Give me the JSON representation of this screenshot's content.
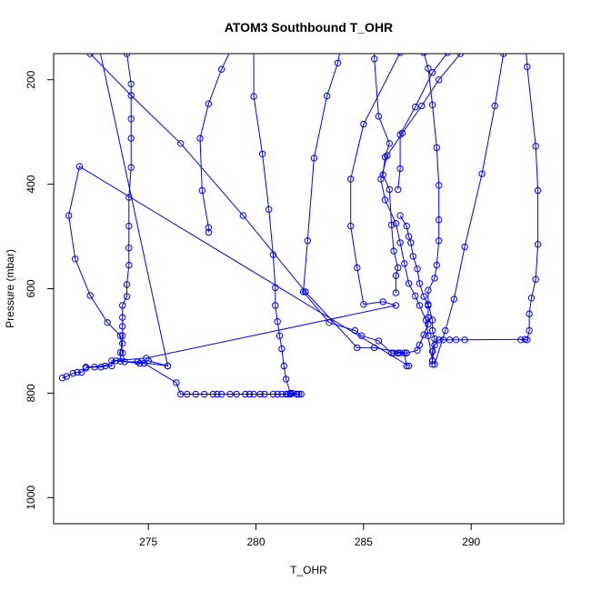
{
  "chart_data": {
    "type": "line",
    "title": "ATOM3 Southbound T_OHR",
    "xlabel": "T_OHR",
    "ylabel": "Pressure (mbar)",
    "xlim": [
      270.6,
      294.3
    ],
    "ylim": [
      1050,
      150
    ],
    "y_reversed": true,
    "x_ticks": [
      275,
      280,
      285,
      290
    ],
    "y_ticks": [
      200,
      400,
      600,
      800,
      1000
    ],
    "grid": false,
    "series_color": "#0000ff",
    "marker": "open-circle",
    "series": [
      {
        "points": [
          [
            272.2,
            40
          ],
          [
            275.9,
            748
          ],
          [
            275.0,
            738
          ],
          [
            274.6,
            743
          ],
          [
            273.7,
            739
          ],
          [
            273.7,
            722
          ],
          [
            273.8,
            705
          ],
          [
            273.8,
            690
          ],
          [
            273.8,
            672
          ],
          [
            273.8,
            655
          ],
          [
            273.8,
            632
          ],
          [
            274.0,
            615
          ],
          [
            274.0,
            592
          ],
          [
            274.1,
            555
          ],
          [
            274.1,
            522
          ],
          [
            274.1,
            480
          ],
          [
            274.1,
            425
          ],
          [
            274.2,
            368
          ],
          [
            274.2,
            312
          ],
          [
            274.2,
            275
          ],
          [
            274.2,
            208
          ],
          [
            274.0,
            150
          ],
          [
            273.9,
            40
          ]
        ]
      },
      {
        "points": [
          [
            282.1,
            802
          ],
          [
            281.9,
            802
          ],
          [
            281.7,
            800
          ],
          [
            281.6,
            800
          ],
          [
            281.4,
            773
          ],
          [
            281.3,
            748
          ],
          [
            281.2,
            715
          ],
          [
            281.1,
            690
          ],
          [
            281.0,
            663
          ],
          [
            280.9,
            632
          ],
          [
            280.9,
            598
          ],
          [
            280.8,
            535
          ],
          [
            280.6,
            448
          ],
          [
            280.3,
            342
          ],
          [
            279.9,
            232
          ],
          [
            279.9,
            100
          ],
          [
            279.9,
            40
          ]
        ]
      },
      {
        "points": [
          [
            282.0,
            802
          ],
          [
            281.9,
            802
          ],
          [
            281.6,
            802
          ],
          [
            281.5,
            802
          ],
          [
            281.4,
            802
          ],
          [
            281.2,
            802
          ],
          [
            281.0,
            802
          ],
          [
            280.8,
            802
          ],
          [
            280.4,
            802
          ],
          [
            280.2,
            802
          ],
          [
            279.9,
            802
          ],
          [
            279.7,
            802
          ],
          [
            279.5,
            802
          ],
          [
            279.1,
            802
          ],
          [
            278.8,
            802
          ],
          [
            278.4,
            802
          ],
          [
            278.2,
            802
          ],
          [
            278.0,
            802
          ],
          [
            277.6,
            802
          ],
          [
            277.2,
            802
          ],
          [
            276.8,
            802
          ],
          [
            276.5,
            802
          ],
          [
            276.3,
            780
          ],
          [
            274.8,
            743
          ],
          [
            273.5,
            738
          ],
          [
            272.8,
            750
          ],
          [
            272.5,
            750
          ],
          [
            272.1,
            752
          ],
          [
            271.9,
            760
          ],
          [
            271.7,
            760
          ],
          [
            271.5,
            762
          ],
          [
            271.2,
            768
          ],
          [
            271.0,
            771
          ]
        ]
      },
      {
        "points": [
          [
            272.1,
            750
          ],
          [
            273.0,
            748
          ],
          [
            273.3,
            748
          ],
          [
            273.3,
            738
          ],
          [
            274.9,
            733
          ],
          [
            286.5,
            632
          ],
          [
            285.9,
            625
          ],
          [
            285.0,
            630
          ],
          [
            284.7,
            560
          ],
          [
            284.4,
            480
          ],
          [
            284.4,
            390
          ],
          [
            285.0,
            285
          ],
          [
            286.7,
            148
          ],
          [
            287.3,
            40
          ]
        ]
      },
      {
        "points": [
          [
            287.0,
            723
          ],
          [
            286.7,
            723
          ],
          [
            286.6,
            723
          ],
          [
            286.4,
            723
          ],
          [
            286.3,
            723
          ],
          [
            285.7,
            700
          ],
          [
            284.9,
            690
          ],
          [
            284.6,
            680
          ],
          [
            283.4,
            665
          ],
          [
            282.2,
            606
          ],
          [
            282.4,
            508
          ],
          [
            282.7,
            350
          ],
          [
            283.3,
            231
          ],
          [
            283.8,
            168
          ],
          [
            284.1,
            100
          ],
          [
            284.4,
            40
          ]
        ]
      },
      {
        "points": [
          [
            287.0,
            748
          ],
          [
            286.9,
            723
          ],
          [
            285.5,
            713
          ],
          [
            284.7,
            713
          ],
          [
            282.3,
            606
          ],
          [
            279.4,
            460
          ],
          [
            276.5,
            322
          ],
          [
            274.2,
            230
          ],
          [
            272.3,
            150
          ],
          [
            271.9,
            40
          ]
        ]
      },
      {
        "points": [
          [
            287.1,
            748
          ],
          [
            271.8,
            366
          ],
          [
            271.3,
            460
          ],
          [
            271.6,
            543
          ],
          [
            272.3,
            613
          ],
          [
            273.1,
            665
          ],
          [
            273.7,
            690
          ],
          [
            273.8,
            723
          ],
          [
            273.9,
            740
          ],
          [
            274.5,
            740
          ],
          [
            275.9,
            748
          ]
        ]
      },
      {
        "points": [
          [
            277.8,
            492
          ],
          [
            277.8,
            483
          ],
          [
            277.5,
            412
          ],
          [
            277.4,
            312
          ],
          [
            277.8,
            246
          ],
          [
            278.4,
            180
          ],
          [
            279.1,
            120
          ],
          [
            279.6,
            40
          ]
        ]
      },
      {
        "points": [
          [
            286.5,
            608
          ],
          [
            286.5,
            575
          ],
          [
            286.6,
            560
          ],
          [
            286.4,
            528
          ],
          [
            286.3,
            478
          ],
          [
            286.2,
            410
          ],
          [
            285.9,
            382
          ],
          [
            286.0,
            348
          ],
          [
            286.2,
            322
          ],
          [
            285.7,
            270
          ],
          [
            285.5,
            160
          ],
          [
            285.6,
            40
          ]
        ]
      },
      {
        "points": [
          [
            286.6,
            410
          ],
          [
            286.7,
            370
          ],
          [
            286.7,
            305
          ],
          [
            287.4,
            252
          ],
          [
            288.2,
            186
          ],
          [
            288.9,
            148
          ],
          [
            290.1,
            40
          ]
        ]
      },
      {
        "points": [
          [
            292.3,
            698
          ],
          [
            292.6,
            698
          ],
          [
            292.7,
            680
          ],
          [
            292.7,
            648
          ],
          [
            292.8,
            618
          ],
          [
            293.0,
            582
          ],
          [
            293.1,
            515
          ],
          [
            293.1,
            412
          ],
          [
            293.0,
            327
          ],
          [
            292.6,
            175
          ],
          [
            292.4,
            40
          ]
        ]
      },
      {
        "points": [
          [
            292.5,
            697
          ],
          [
            289.7,
            698
          ],
          [
            289.3,
            698
          ],
          [
            289.0,
            698
          ],
          [
            288.7,
            698
          ],
          [
            288.5,
            698
          ],
          [
            288.3,
            708
          ],
          [
            288.2,
            738
          ],
          [
            288.2,
            745
          ],
          [
            288.2,
            720
          ],
          [
            288.3,
            696
          ],
          [
            288.2,
            680
          ],
          [
            288.2,
            660
          ],
          [
            288.0,
            630
          ],
          [
            288.0,
            603
          ],
          [
            288.3,
            580
          ],
          [
            288.4,
            555
          ],
          [
            288.5,
            508
          ],
          [
            288.5,
            468
          ],
          [
            288.5,
            402
          ],
          [
            288.4,
            330
          ],
          [
            288.2,
            248
          ],
          [
            288.0,
            178
          ],
          [
            287.8,
            148
          ],
          [
            287.6,
            40
          ]
        ]
      },
      {
        "points": [
          [
            288.2,
            738
          ],
          [
            288.0,
            690
          ],
          [
            287.9,
            660
          ],
          [
            287.6,
            632
          ],
          [
            287.4,
            614
          ],
          [
            287.1,
            590
          ],
          [
            286.9,
            552
          ],
          [
            286.7,
            512
          ],
          [
            286.5,
            475
          ],
          [
            286.0,
            430
          ],
          [
            285.8,
            390
          ],
          [
            286.1,
            345
          ],
          [
            286.8,
            302
          ],
          [
            287.7,
            250
          ],
          [
            288.5,
            200
          ],
          [
            289.5,
            150
          ],
          [
            290.2,
            40
          ]
        ]
      },
      {
        "points": [
          [
            288.3,
            745
          ],
          [
            288.8,
            680
          ],
          [
            289.2,
            620
          ],
          [
            289.7,
            520
          ],
          [
            290.5,
            380
          ],
          [
            291.1,
            250
          ],
          [
            291.5,
            150
          ],
          [
            291.6,
            40
          ]
        ]
      },
      {
        "points": [
          [
            286.6,
            723
          ],
          [
            287.0,
            723
          ],
          [
            287.5,
            718
          ],
          [
            287.6,
            708
          ],
          [
            287.8,
            688
          ],
          [
            288.0,
            668
          ],
          [
            288.0,
            655
          ],
          [
            288.0,
            632
          ],
          [
            287.8,
            615
          ],
          [
            287.6,
            590
          ],
          [
            287.5,
            562
          ],
          [
            287.3,
            538
          ],
          [
            287.2,
            512
          ],
          [
            287.1,
            500
          ],
          [
            287.0,
            480
          ],
          [
            286.7,
            460
          ]
        ]
      }
    ]
  }
}
